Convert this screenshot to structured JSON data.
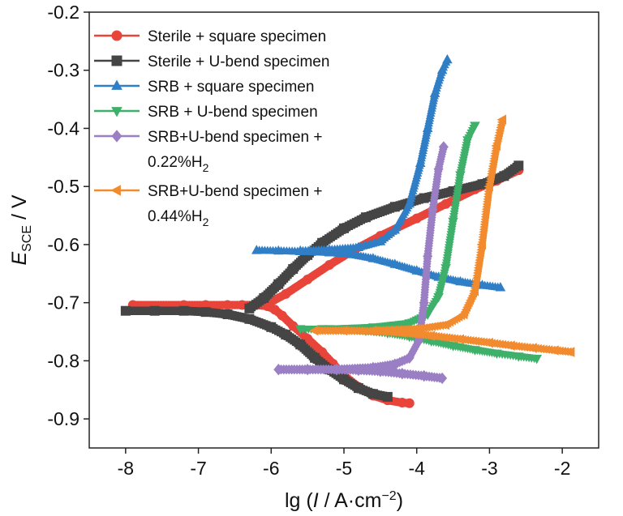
{
  "chart_data": {
    "type": "line",
    "title": "",
    "xlabel": "lg (I / A·cm−2)",
    "ylabel": "E_SCE / V",
    "xlabel_parts": {
      "prefix": "lg (",
      "var": "I",
      "mid": " / A·cm",
      "sup": "−2",
      "suffix": ")"
    },
    "ylabel_parts": {
      "var": "E",
      "sub": "SCE",
      "suffix": " / V"
    },
    "xlim": [
      -8.5,
      -1.5
    ],
    "ylim": [
      -0.95,
      -0.2
    ],
    "xticks": [
      -8,
      -7,
      -6,
      -5,
      -4,
      -3,
      -2
    ],
    "xtick_labels": [
      "-8",
      "-7",
      "-6",
      "-5",
      "-4",
      "-3",
      "-2"
    ],
    "yticks": [
      -0.2,
      -0.3,
      -0.4,
      -0.5,
      -0.6,
      -0.7,
      -0.8,
      -0.9
    ],
    "ytick_labels": [
      "-0.2",
      "-0.3",
      "-0.4",
      "-0.5",
      "-0.6",
      "-0.7",
      "-0.8",
      "-0.9"
    ],
    "grid": false,
    "legend_position": "top-left",
    "series": [
      {
        "name": "Sterile + square specimen",
        "legend_lines": [
          "Sterile + square specimen"
        ],
        "color": "#e8443a",
        "marker": "circle",
        "cathodic": [
          [
            -7.9,
            -0.704
          ],
          [
            -7.2,
            -0.704
          ],
          [
            -6.9,
            -0.704
          ],
          [
            -6.6,
            -0.704
          ],
          [
            -6.4,
            -0.704
          ],
          [
            -6.2,
            -0.704
          ],
          [
            -6.05,
            -0.706
          ],
          [
            -5.95,
            -0.712
          ],
          [
            -5.85,
            -0.722
          ],
          [
            -5.7,
            -0.74
          ],
          [
            -5.5,
            -0.762
          ],
          [
            -5.3,
            -0.785
          ],
          [
            -5.15,
            -0.805
          ],
          [
            -5.0,
            -0.825
          ],
          [
            -4.8,
            -0.845
          ],
          [
            -4.6,
            -0.86
          ],
          [
            -4.4,
            -0.868
          ],
          [
            -4.2,
            -0.872
          ],
          [
            -4.1,
            -0.873
          ]
        ],
        "anodic": [
          [
            -6.05,
            -0.702
          ],
          [
            -5.8,
            -0.685
          ],
          [
            -5.5,
            -0.66
          ],
          [
            -5.2,
            -0.635
          ],
          [
            -4.9,
            -0.612
          ],
          [
            -4.5,
            -0.585
          ],
          [
            -4.0,
            -0.555
          ],
          [
            -3.6,
            -0.53
          ],
          [
            -3.2,
            -0.505
          ],
          [
            -2.9,
            -0.49
          ],
          [
            -2.6,
            -0.472
          ]
        ]
      },
      {
        "name": "Sterile + U-bend specimen",
        "legend_lines": [
          "Sterile + U-bend specimen"
        ],
        "color": "#454545",
        "marker": "square",
        "cathodic": [
          [
            -8.0,
            -0.714
          ],
          [
            -7.6,
            -0.714
          ],
          [
            -7.2,
            -0.714
          ],
          [
            -6.9,
            -0.716
          ],
          [
            -6.6,
            -0.72
          ],
          [
            -6.3,
            -0.728
          ],
          [
            -6.0,
            -0.742
          ],
          [
            -5.8,
            -0.755
          ],
          [
            -5.6,
            -0.772
          ],
          [
            -5.4,
            -0.795
          ],
          [
            -5.2,
            -0.815
          ],
          [
            -5.0,
            -0.832
          ],
          [
            -4.8,
            -0.847
          ],
          [
            -4.6,
            -0.857
          ],
          [
            -4.4,
            -0.862
          ]
        ],
        "anodic": [
          [
            -6.3,
            -0.71
          ],
          [
            -6.1,
            -0.692
          ],
          [
            -5.9,
            -0.668
          ],
          [
            -5.7,
            -0.642
          ],
          [
            -5.5,
            -0.618
          ],
          [
            -5.3,
            -0.597
          ],
          [
            -5.0,
            -0.572
          ],
          [
            -4.7,
            -0.553
          ],
          [
            -4.3,
            -0.535
          ],
          [
            -3.9,
            -0.52
          ],
          [
            -3.5,
            -0.508
          ],
          [
            -3.1,
            -0.496
          ],
          [
            -2.8,
            -0.482
          ],
          [
            -2.6,
            -0.464
          ]
        ]
      },
      {
        "name": "SRB + square specimen",
        "legend_lines": [
          "SRB + square specimen"
        ],
        "color": "#2f7ec6",
        "marker": "triangle-up",
        "cathodic": [
          [
            -6.2,
            -0.61
          ],
          [
            -5.9,
            -0.611
          ],
          [
            -5.6,
            -0.612
          ],
          [
            -5.2,
            -0.614
          ],
          [
            -4.9,
            -0.617
          ],
          [
            -4.6,
            -0.624
          ],
          [
            -4.3,
            -0.634
          ],
          [
            -4.0,
            -0.645
          ],
          [
            -3.7,
            -0.656
          ],
          [
            -3.4,
            -0.664
          ],
          [
            -3.1,
            -0.67
          ],
          [
            -2.85,
            -0.674
          ]
        ],
        "anodic": [
          [
            -5.6,
            -0.611
          ],
          [
            -5.2,
            -0.609
          ],
          [
            -4.8,
            -0.605
          ],
          [
            -4.5,
            -0.595
          ],
          [
            -4.3,
            -0.575
          ],
          [
            -4.1,
            -0.53
          ],
          [
            -3.95,
            -0.46
          ],
          [
            -3.85,
            -0.4
          ],
          [
            -3.75,
            -0.34
          ],
          [
            -3.65,
            -0.3
          ],
          [
            -3.58,
            -0.282
          ]
        ]
      },
      {
        "name": "SRB + U-bend specimen",
        "legend_lines": [
          "SRB + U-bend specimen"
        ],
        "color": "#3eb06a",
        "marker": "triangle-down",
        "cathodic": [
          [
            -5.6,
            -0.745
          ],
          [
            -5.3,
            -0.745
          ],
          [
            -5.0,
            -0.746
          ],
          [
            -4.7,
            -0.748
          ],
          [
            -4.4,
            -0.752
          ],
          [
            -4.1,
            -0.758
          ],
          [
            -3.8,
            -0.766
          ],
          [
            -3.5,
            -0.774
          ],
          [
            -3.2,
            -0.781
          ],
          [
            -2.9,
            -0.787
          ],
          [
            -2.6,
            -0.792
          ],
          [
            -2.35,
            -0.796
          ]
        ],
        "anodic": [
          [
            -5.2,
            -0.745
          ],
          [
            -4.6,
            -0.742
          ],
          [
            -4.1,
            -0.735
          ],
          [
            -3.85,
            -0.72
          ],
          [
            -3.7,
            -0.69
          ],
          [
            -3.6,
            -0.64
          ],
          [
            -3.5,
            -0.56
          ],
          [
            -3.4,
            -0.48
          ],
          [
            -3.3,
            -0.42
          ],
          [
            -3.2,
            -0.395
          ]
        ]
      },
      {
        "name": "SRB+U-bend specimen + 0.22%H2",
        "legend_lines": [
          "SRB+U-bend specimen +",
          "0.22%H",
          "2"
        ],
        "color": "#9a7fc4",
        "marker": "diamond",
        "cathodic": [
          [
            -5.9,
            -0.815
          ],
          [
            -5.5,
            -0.815
          ],
          [
            -5.1,
            -0.815
          ],
          [
            -4.8,
            -0.816
          ],
          [
            -4.5,
            -0.818
          ],
          [
            -4.2,
            -0.822
          ],
          [
            -3.9,
            -0.826
          ],
          [
            -3.65,
            -0.83
          ]
        ],
        "anodic": [
          [
            -5.1,
            -0.815
          ],
          [
            -4.6,
            -0.812
          ],
          [
            -4.3,
            -0.806
          ],
          [
            -4.1,
            -0.795
          ],
          [
            -3.97,
            -0.765
          ],
          [
            -3.9,
            -0.7
          ],
          [
            -3.85,
            -0.62
          ],
          [
            -3.78,
            -0.54
          ],
          [
            -3.7,
            -0.47
          ],
          [
            -3.63,
            -0.432
          ]
        ]
      },
      {
        "name": "SRB+U-bend specimen + 0.44%H2",
        "legend_lines": [
          "SRB+U-bend specimen +",
          "0.44%H",
          "2"
        ],
        "color": "#f28a2e",
        "marker": "triangle-left",
        "cathodic": [
          [
            -5.4,
            -0.748
          ],
          [
            -5.0,
            -0.748
          ],
          [
            -4.6,
            -0.749
          ],
          [
            -4.2,
            -0.752
          ],
          [
            -3.8,
            -0.757
          ],
          [
            -3.4,
            -0.763
          ],
          [
            -3.0,
            -0.769
          ],
          [
            -2.7,
            -0.774
          ],
          [
            -2.4,
            -0.778
          ],
          [
            -2.1,
            -0.782
          ],
          [
            -1.88,
            -0.785
          ]
        ],
        "anodic": [
          [
            -4.6,
            -0.748
          ],
          [
            -4.0,
            -0.745
          ],
          [
            -3.6,
            -0.738
          ],
          [
            -3.35,
            -0.72
          ],
          [
            -3.2,
            -0.68
          ],
          [
            -3.1,
            -0.6
          ],
          [
            -3.0,
            -0.5
          ],
          [
            -2.9,
            -0.43
          ],
          [
            -2.82,
            -0.385
          ]
        ]
      }
    ]
  }
}
